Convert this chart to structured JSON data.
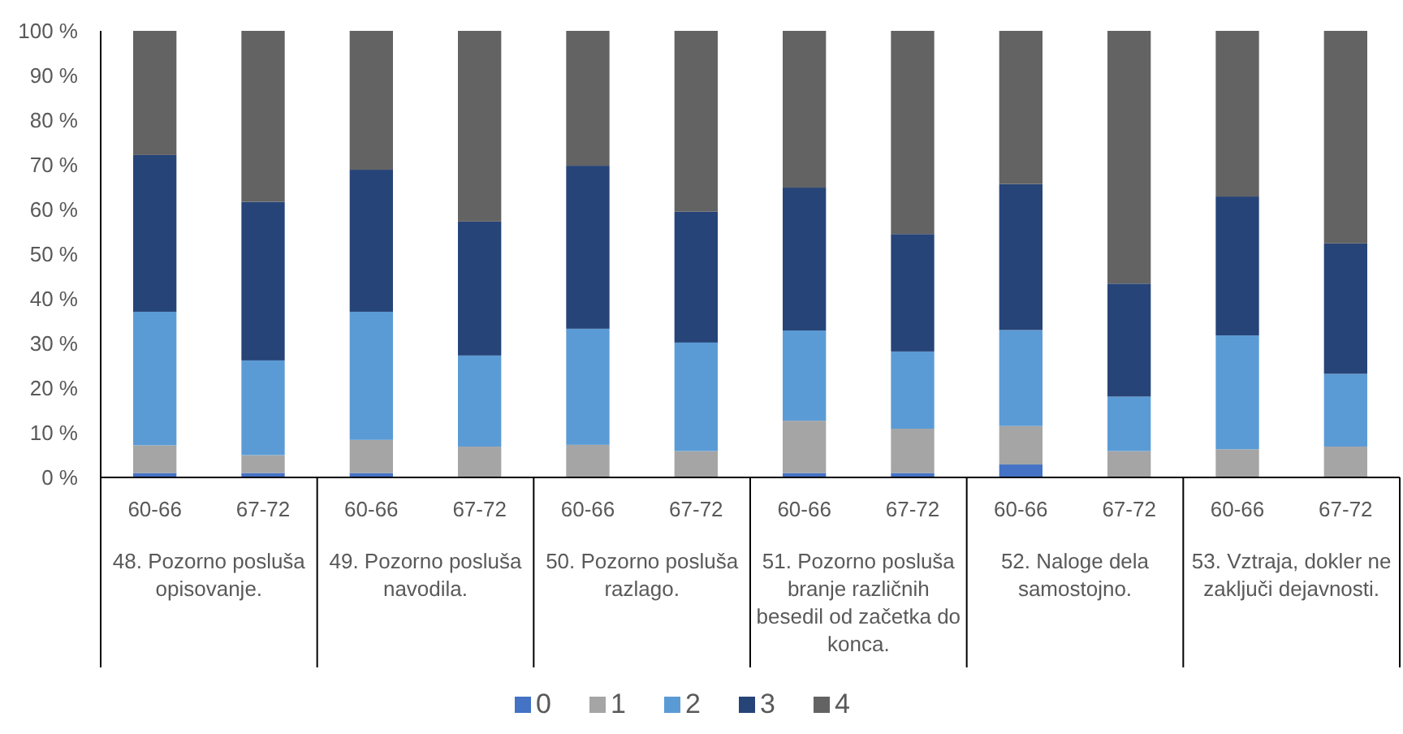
{
  "chart_data": {
    "type": "bar",
    "stacked": true,
    "categories": [
      "60-66",
      "67-72",
      "60-66",
      "67-72",
      "60-66",
      "67-72",
      "60-66",
      "67-72",
      "60-66",
      "67-72",
      "60-66",
      "67-72"
    ],
    "annotations": [
      "48. Pozorno posluša opisovanje.",
      "49. Pozorno posluša navodila.",
      "50. Pozorno posluša razlago.",
      "51. Pozorno posluša branje različnih besedil od začetka do konca.",
      "52. Naloge dela samostojno.",
      "53. Vztraja, dokler ne zaključi dejavnosti."
    ],
    "series": [
      {
        "name": "0",
        "color": "#4472c4",
        "values": [
          1,
          1,
          1,
          0,
          0,
          0,
          1,
          1,
          2.9,
          0,
          0,
          0
        ]
      },
      {
        "name": "1",
        "color": "#a5a5a5",
        "values": [
          6.2,
          4,
          7.4,
          6.9,
          7.3,
          5.9,
          11.7,
          9.9,
          8.6,
          5.9,
          6.3,
          6.9
        ]
      },
      {
        "name": "2",
        "color": "#5b9bd5",
        "values": [
          29.9,
          21.2,
          28.7,
          20.4,
          26,
          24.3,
          20.2,
          17.3,
          21.5,
          12.2,
          25.5,
          16.3
        ]
      },
      {
        "name": "3",
        "color": "#264478",
        "values": [
          35.1,
          35.5,
          31.8,
          30,
          36.5,
          29.3,
          32,
          26.3,
          32.7,
          25.3,
          31.1,
          29.2
        ]
      },
      {
        "name": "4",
        "color": "#636363",
        "values": [
          27.8,
          38.3,
          31.1,
          42.7,
          30.2,
          40.5,
          35.1,
          45.5,
          34.3,
          56.6,
          37.1,
          47.6
        ]
      }
    ],
    "ylim": [
      0,
      100
    ],
    "yticks": [
      {
        "value": 0,
        "label": "0 %"
      },
      {
        "value": 10,
        "label": "10 %"
      },
      {
        "value": 20,
        "label": "20 %"
      },
      {
        "value": 30,
        "label": "30 %"
      },
      {
        "value": 40,
        "label": "40 %"
      },
      {
        "value": 50,
        "label": "50 %"
      },
      {
        "value": 60,
        "label": "60 %"
      },
      {
        "value": 70,
        "label": "70 %"
      },
      {
        "value": 80,
        "label": "80 %"
      },
      {
        "value": 90,
        "label": "90 %"
      },
      {
        "value": 100,
        "label": "100 %"
      }
    ],
    "grid": false,
    "legend": "bottom"
  }
}
